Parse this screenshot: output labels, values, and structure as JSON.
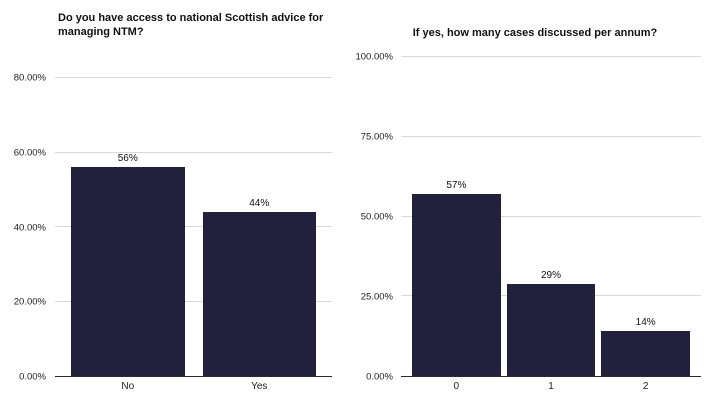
{
  "chart_data": [
    {
      "type": "bar",
      "title": "Do you have access to national Scottish advice for managing NTM?",
      "categories": [
        "No",
        "Yes"
      ],
      "values": [
        56,
        44
      ],
      "value_labels": [
        "56%",
        "44%"
      ],
      "ylim": [
        0,
        80
      ],
      "yticks": [
        0,
        20,
        40,
        60,
        80
      ],
      "ytick_labels": [
        "0.00%",
        "20.00%",
        "40.00%",
        "60.00%",
        "80.00%"
      ],
      "xlabel": "",
      "ylabel": "",
      "grid": true,
      "legend": false
    },
    {
      "type": "bar",
      "title": "If yes, how many cases discussed per annum?",
      "categories": [
        "0",
        "1",
        "2"
      ],
      "values": [
        57,
        29,
        14
      ],
      "value_labels": [
        "57%",
        "29%",
        "14%"
      ],
      "ylim": [
        0,
        100
      ],
      "yticks": [
        0,
        25,
        50,
        75,
        100
      ],
      "ytick_labels": [
        "0.00%",
        "25.00%",
        "50.00%",
        "75.00%",
        "100.00%"
      ],
      "xlabel": "",
      "ylabel": "",
      "grid": true,
      "legend": false
    }
  ],
  "colors": {
    "bar": "#21213d",
    "gridline": "#d9d9d9",
    "axis_line": "#2b2b2b",
    "background": "#ffffff",
    "text": "#111111"
  }
}
